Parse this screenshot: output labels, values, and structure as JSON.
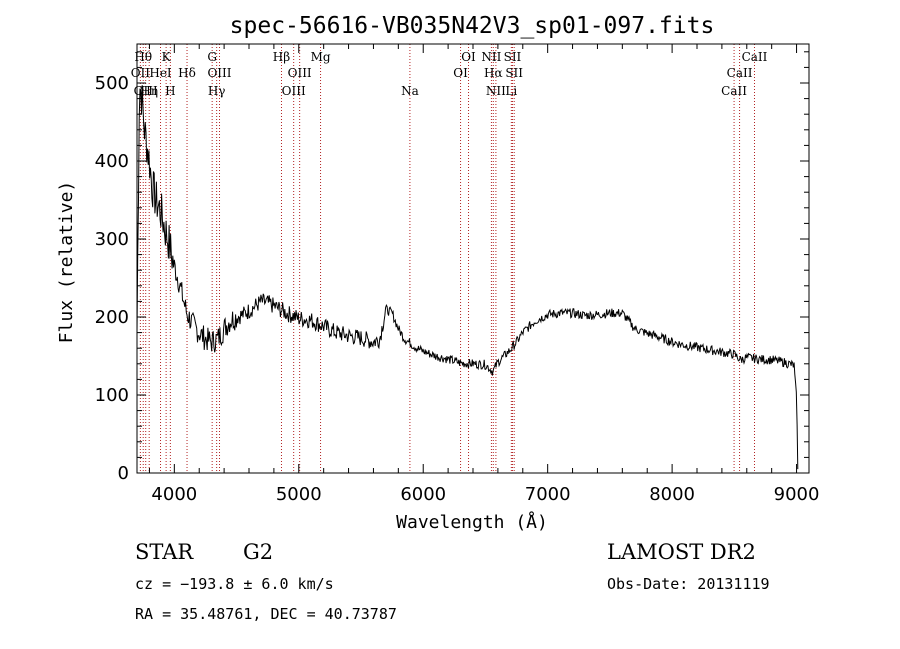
{
  "chart_data": {
    "type": "line",
    "title": "spec-56616-VB035N42V3_sp01-097.fits",
    "xlabel": "Wavelength (Å)",
    "ylabel": "Flux (relative)",
    "xlim": [
      3700,
      9100
    ],
    "ylim": [
      0,
      550
    ],
    "xticks": [
      4000,
      5000,
      6000,
      7000,
      8000,
      9000
    ],
    "yticks": [
      0,
      100,
      200,
      300,
      400,
      500
    ],
    "grid": false,
    "series": [
      {
        "x": [
          3700,
          3720,
          3740,
          3760,
          3780,
          3800,
          3820,
          3850,
          3880,
          3900,
          3930,
          3950,
          3970,
          4000,
          4030,
          4060,
          4100,
          4150,
          4200,
          4250,
          4300,
          4350,
          4400,
          4450,
          4500,
          4550,
          4600,
          4650,
          4700,
          4750,
          4800,
          4850,
          4900,
          4950,
          5000,
          5050,
          5100,
          5200,
          5300,
          5400,
          5500,
          5600,
          5650,
          5700,
          5750,
          5800,
          5850,
          5900,
          5950,
          6000,
          6100,
          6200,
          6300,
          6400,
          6500,
          6560,
          6600,
          6650,
          6700,
          6750,
          6800,
          6900,
          7000,
          7100,
          7200,
          7300,
          7400,
          7500,
          7600,
          7650,
          7700,
          7800,
          7900,
          8000,
          8100,
          8200,
          8300,
          8400,
          8500,
          8550,
          8600,
          8700,
          8800,
          8900,
          8980,
          9000,
          9010
        ],
        "values": [
          180,
          500,
          480,
          440,
          420,
          400,
          370,
          350,
          340,
          330,
          310,
          300,
          285,
          265,
          250,
          230,
          205,
          190,
          180,
          172,
          168,
          172,
          185,
          196,
          200,
          203,
          208,
          214,
          220,
          218,
          214,
          210,
          205,
          202,
          198,
          197,
          196,
          188,
          180,
          176,
          173,
          168,
          172,
          210,
          205,
          185,
          172,
          166,
          160,
          156,
          150,
          146,
          141,
          140,
          139,
          130,
          142,
          150,
          158,
          168,
          180,
          195,
          203,
          205,
          205,
          202,
          203,
          205,
          205,
          195,
          185,
          179,
          174,
          168,
          164,
          161,
          158,
          155,
          152,
          145,
          148,
          146,
          145,
          142,
          138,
          100,
          5
        ]
      }
    ],
    "lines": [
      {
        "wl": 3727,
        "label": "OII",
        "row": 1
      },
      {
        "wl": 3750,
        "label": "Hθ",
        "row": 0
      },
      {
        "wl": 3770,
        "label": "OIII",
        "row": 2
      },
      {
        "wl": 3798,
        "label": "Hη",
        "row": 2
      },
      {
        "wl": 3889,
        "label": "HeI",
        "row": 1
      },
      {
        "wl": 3934,
        "label": "K",
        "row": 0
      },
      {
        "wl": 3968,
        "label": "H",
        "row": 2
      },
      {
        "wl": 4102,
        "label": "Hδ",
        "row": 1
      },
      {
        "wl": 4304,
        "label": "G",
        "row": 0
      },
      {
        "wl": 4340,
        "label": "Hγ",
        "row": 2
      },
      {
        "wl": 4363,
        "label": "OIII",
        "row": 1
      },
      {
        "wl": 4861,
        "label": "Hβ",
        "row": 0
      },
      {
        "wl": 4959,
        "label": "OIII",
        "row": 2
      },
      {
        "wl": 5007,
        "label": "OIII",
        "row": 1
      },
      {
        "wl": 5175,
        "label": "Mg",
        "row": 0
      },
      {
        "wl": 5893,
        "label": "Na",
        "row": 2
      },
      {
        "wl": 6300,
        "label": "OI",
        "row": 1
      },
      {
        "wl": 6364,
        "label": "OI",
        "row": 0
      },
      {
        "wl": 6548,
        "label": "NII",
        "row": 0
      },
      {
        "wl": 6563,
        "label": "Hα",
        "row": 1
      },
      {
        "wl": 6584,
        "label": "NII",
        "row": 2
      },
      {
        "wl": 6708,
        "label": "Li",
        "row": 2
      },
      {
        "wl": 6717,
        "label": "SII",
        "row": 0
      },
      {
        "wl": 6731,
        "label": "SII",
        "row": 1
      },
      {
        "wl": 8498,
        "label": "CaII",
        "row": 2
      },
      {
        "wl": 8542,
        "label": "CaII",
        "row": 1
      },
      {
        "wl": 8662,
        "label": "CaII",
        "row": 0
      }
    ]
  },
  "info": {
    "class_label": "STAR",
    "subclass": "G2",
    "survey": "LAMOST DR2",
    "cz": "cz = −193.8 ± 6.0 km/s",
    "obs_date": "Obs-Date: 20131119",
    "radec": "RA =  35.48761, DEC =  40.73787"
  },
  "colors": {
    "line_marker": "#b22222",
    "spectrum": "#000000"
  }
}
